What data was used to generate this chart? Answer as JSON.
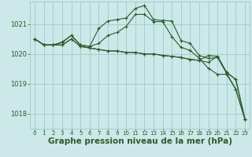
{
  "bg_color": "#cce8e8",
  "grid_color": "#99cccc",
  "line_color": "#2d5a2d",
  "xlabel": "Graphe pression niveau de la mer (hPa)",
  "xlabel_fontsize": 7.5,
  "xtick_fontsize": 5.0,
  "ytick_fontsize": 6.0,
  "xticks": [
    0,
    1,
    2,
    3,
    4,
    5,
    6,
    7,
    8,
    9,
    10,
    11,
    12,
    13,
    14,
    15,
    16,
    17,
    18,
    19,
    20,
    21,
    22,
    23
  ],
  "yticks": [
    1018,
    1019,
    1020,
    1021
  ],
  "ylim": [
    1017.5,
    1021.75
  ],
  "xlim": [
    -0.5,
    23.5
  ],
  "lines": [
    [
      1020.5,
      1020.3,
      1020.3,
      1020.4,
      1020.62,
      1020.3,
      1020.25,
      1020.85,
      1021.1,
      1021.15,
      1021.2,
      1021.52,
      1021.62,
      1021.15,
      1021.12,
      1021.1,
      1020.45,
      1020.35,
      1019.95,
      1019.85,
      1019.88,
      1019.35,
      1018.82,
      1017.82
    ],
    [
      1020.5,
      1020.3,
      1020.3,
      1020.3,
      1020.5,
      1020.25,
      1020.2,
      1020.15,
      1020.1,
      1020.1,
      1020.05,
      1020.05,
      1020.0,
      1020.0,
      1019.95,
      1019.92,
      1019.88,
      1019.82,
      1019.78,
      1019.72,
      1019.92,
      1019.38,
      1019.15,
      1017.82
    ],
    [
      1020.5,
      1020.3,
      1020.3,
      1020.3,
      1020.5,
      1020.25,
      1020.2,
      1020.15,
      1020.1,
      1020.1,
      1020.05,
      1020.05,
      1020.0,
      1020.0,
      1019.95,
      1019.92,
      1019.88,
      1019.82,
      1019.78,
      1019.95,
      1019.92,
      1019.38,
      1019.15,
      1017.82
    ],
    [
      1020.5,
      1020.3,
      1020.3,
      1020.38,
      1020.62,
      1020.3,
      1020.25,
      1020.35,
      1020.62,
      1020.72,
      1020.92,
      1021.32,
      1021.32,
      1021.08,
      1021.08,
      1020.58,
      1020.22,
      1020.12,
      1019.85,
      1019.52,
      1019.32,
      1019.32,
      1018.82,
      1017.82
    ]
  ]
}
